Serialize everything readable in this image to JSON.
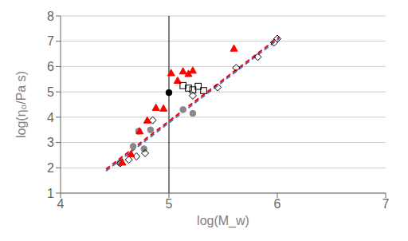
{
  "chart_data": {
    "type": "scatter",
    "xlabel": "log(M_w)",
    "ylabel": "log(η₀/Pa s)",
    "xlim": [
      4,
      7
    ],
    "ylim": [
      1,
      8
    ],
    "xticks": [
      4,
      5,
      6,
      7
    ],
    "yticks": [
      1,
      2,
      3,
      4,
      5,
      6,
      7,
      8
    ],
    "grid": "y",
    "series": [
      {
        "type": "line",
        "color": "#4472c4",
        "line_style": "dashed",
        "x": [
          4.42,
          6.02
        ],
        "values": [
          1.88,
          7.12
        ]
      },
      {
        "type": "line",
        "color": "#ff0000",
        "line_style": "dashed",
        "x": [
          4.42,
          6.02
        ],
        "values": [
          1.95,
          7.18
        ]
      },
      {
        "type": "scatter",
        "color": "#888888",
        "marker": "circle",
        "x": [
          4.55,
          4.67,
          4.72,
          4.77,
          4.83,
          5.13,
          5.22
        ],
        "values": [
          2.2,
          2.85,
          3.45,
          2.75,
          3.5,
          4.3,
          4.15
        ]
      },
      {
        "type": "scatter",
        "color": "#000000",
        "marker": "diamond_open",
        "x": [
          4.55,
          4.63,
          4.7,
          4.78,
          4.85,
          5.22,
          5.45,
          5.62,
          5.82,
          5.97,
          6.0
        ],
        "values": [
          2.18,
          2.32,
          2.45,
          2.58,
          3.88,
          4.85,
          5.18,
          5.95,
          6.38,
          6.95,
          7.1
        ]
      },
      {
        "type": "scatter",
        "color": "#ff0000",
        "marker": "triangle",
        "x": [
          4.57,
          4.65,
          4.73,
          4.8,
          4.88,
          4.95,
          5.02,
          5.08,
          5.13,
          5.18,
          5.22,
          5.6
        ],
        "values": [
          2.22,
          2.55,
          3.45,
          3.88,
          4.38,
          4.35,
          5.75,
          5.45,
          5.82,
          5.72,
          5.85,
          6.72
        ]
      },
      {
        "type": "scatter",
        "color": "#000000",
        "marker": "square_open",
        "x": [
          5.13,
          5.18,
          5.22,
          5.27,
          5.32
        ],
        "values": [
          5.25,
          5.15,
          5.08,
          5.22,
          5.05
        ]
      },
      {
        "type": "scatter",
        "color": "#000000",
        "marker": "circle",
        "x": [
          5.0
        ],
        "values": [
          4.97
        ]
      },
      {
        "type": "vline",
        "color": "#000000",
        "x": [
          5.0
        ]
      }
    ]
  }
}
